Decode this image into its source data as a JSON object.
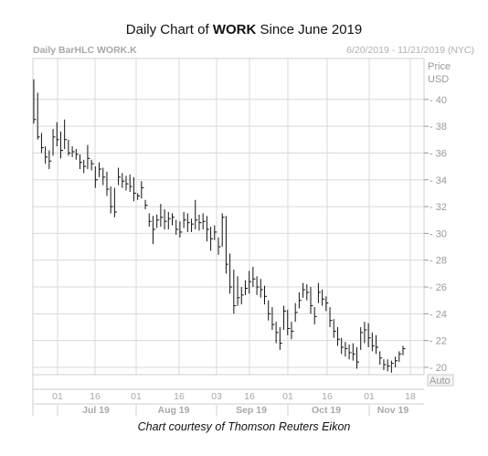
{
  "title": {
    "prefix": "Daily Chart of ",
    "ticker": "WORK",
    "suffix": " Since June 2019"
  },
  "header": {
    "left": "Daily BarHLC WORK.K",
    "right": "6/20/2019 - 11/21/2019 (NYC)"
  },
  "yaxis": {
    "price_label": "Price",
    "currency_label": "USD",
    "auto_label": "Auto"
  },
  "credit": "Chart courtesy of Thomson Reuters Eikon",
  "colors": {
    "bars": "#111111",
    "grid": "#d8d8d8",
    "frame": "#cfcfcf"
  },
  "chart_data": {
    "type": "bar",
    "subtype": "ohlc-hlc",
    "title": "Daily Chart of WORK Since June 2019",
    "ylim": [
      19,
      42
    ],
    "y_ticks": [
      20,
      22,
      24,
      26,
      28,
      30,
      32,
      34,
      36,
      38,
      40
    ],
    "x_ticks": [
      "01",
      "16",
      "01",
      "16",
      "03",
      "16",
      "01",
      "16",
      "01",
      "18"
    ],
    "month_labels": [
      "Jul 19",
      "Aug 19",
      "Sep 19",
      "Oct 19",
      "Nov 19"
    ],
    "grid": true,
    "bars": [
      [
        41.5,
        38.2,
        38.5
      ],
      [
        40.5,
        37.0,
        37.2
      ],
      [
        37.5,
        36.0,
        36.4
      ],
      [
        36.5,
        35.2,
        35.7
      ],
      [
        36.2,
        34.8,
        35.4
      ],
      [
        37.8,
        35.8,
        37.2
      ],
      [
        38.3,
        36.5,
        37.0
      ],
      [
        37.6,
        35.6,
        36.2
      ],
      [
        38.5,
        36.3,
        37.0
      ],
      [
        37.0,
        35.8,
        36.0
      ],
      [
        36.5,
        35.7,
        36.1
      ],
      [
        36.3,
        35.5,
        35.9
      ],
      [
        35.9,
        34.8,
        35.3
      ],
      [
        35.5,
        34.5,
        35.0
      ],
      [
        36.6,
        34.8,
        35.6
      ],
      [
        35.5,
        34.7,
        35.2
      ],
      [
        35.0,
        33.4,
        34.0
      ],
      [
        35.3,
        34.2,
        34.8
      ],
      [
        34.9,
        33.6,
        34.2
      ],
      [
        34.6,
        32.8,
        33.3
      ],
      [
        33.5,
        31.5,
        32.0
      ],
      [
        33.4,
        31.2,
        31.6
      ],
      [
        34.9,
        33.6,
        34.2
      ],
      [
        34.5,
        33.4,
        33.9
      ],
      [
        34.3,
        33.2,
        33.7
      ],
      [
        34.4,
        33.1,
        33.5
      ],
      [
        34.2,
        32.4,
        33.0
      ],
      [
        33.0,
        32.5,
        32.8
      ],
      [
        33.9,
        32.6,
        33.4
      ],
      [
        32.5,
        31.8,
        32.1
      ],
      [
        31.5,
        30.5,
        30.9
      ],
      [
        31.3,
        29.2,
        30.3
      ],
      [
        31.4,
        30.4,
        31.0
      ],
      [
        32.2,
        30.5,
        31.2
      ],
      [
        31.8,
        30.3,
        30.9
      ],
      [
        31.6,
        30.3,
        31.1
      ],
      [
        31.5,
        30.6,
        31.2
      ],
      [
        31.0,
        29.9,
        30.3
      ],
      [
        30.9,
        29.7,
        30.1
      ],
      [
        31.6,
        30.4,
        31.0
      ],
      [
        31.5,
        30.1,
        30.8
      ],
      [
        31.1,
        30.1,
        30.7
      ],
      [
        32.5,
        30.3,
        31.0
      ],
      [
        31.4,
        30.2,
        30.8
      ],
      [
        31.5,
        30.3,
        30.9
      ],
      [
        31.3,
        29.4,
        30.3
      ],
      [
        30.5,
        28.7,
        29.6
      ],
      [
        30.6,
        29.5,
        30.1
      ],
      [
        29.7,
        28.4,
        29.0
      ],
      [
        31.5,
        29.0,
        31.2
      ],
      [
        31.3,
        27.0,
        27.7
      ],
      [
        28.5,
        25.5,
        26.0
      ],
      [
        27.3,
        24.0,
        24.6
      ],
      [
        26.8,
        24.6,
        25.2
      ],
      [
        26.0,
        24.7,
        25.4
      ],
      [
        26.5,
        25.4,
        25.9
      ],
      [
        27.2,
        25.5,
        26.4
      ],
      [
        27.5,
        26.0,
        26.6
      ],
      [
        26.8,
        25.4,
        26.0
      ],
      [
        26.6,
        25.2,
        25.8
      ],
      [
        26.1,
        24.7,
        25.3
      ],
      [
        25.0,
        23.5,
        24.0
      ],
      [
        24.5,
        22.8,
        23.2
      ],
      [
        23.4,
        21.8,
        22.6
      ],
      [
        23.0,
        21.3,
        21.8
      ],
      [
        24.6,
        22.8,
        24.2
      ],
      [
        24.3,
        22.4,
        22.9
      ],
      [
        23.4,
        22.1,
        22.7
      ],
      [
        24.8,
        23.4,
        24.1
      ],
      [
        25.6,
        24.4,
        25.0
      ],
      [
        26.3,
        25.2,
        25.8
      ],
      [
        26.2,
        25.0,
        25.6
      ],
      [
        26.0,
        24.0,
        24.6
      ],
      [
        24.5,
        23.2,
        23.8
      ],
      [
        26.3,
        24.8,
        25.6
      ],
      [
        25.8,
        24.6,
        25.1
      ],
      [
        25.3,
        24.2,
        24.8
      ],
      [
        24.5,
        23.0,
        23.5
      ],
      [
        23.6,
        22.2,
        22.7
      ],
      [
        23.0,
        21.6,
        22.1
      ],
      [
        22.2,
        21.0,
        21.5
      ],
      [
        21.9,
        20.8,
        21.4
      ],
      [
        21.7,
        20.6,
        21.1
      ],
      [
        21.8,
        20.5,
        21.0
      ],
      [
        21.5,
        19.9,
        20.4
      ],
      [
        23.0,
        21.3,
        22.6
      ],
      [
        23.4,
        21.8,
        22.8
      ],
      [
        23.3,
        21.5,
        22.2
      ],
      [
        22.6,
        21.2,
        21.6
      ],
      [
        22.4,
        21.0,
        21.5
      ],
      [
        21.2,
        20.2,
        20.7
      ],
      [
        20.6,
        19.8,
        20.2
      ],
      [
        20.6,
        19.7,
        20.1
      ],
      [
        20.5,
        19.6,
        20.3
      ],
      [
        20.8,
        20.0,
        20.5
      ],
      [
        21.2,
        20.4,
        21.0
      ],
      [
        21.6,
        20.9,
        21.4
      ]
    ]
  }
}
